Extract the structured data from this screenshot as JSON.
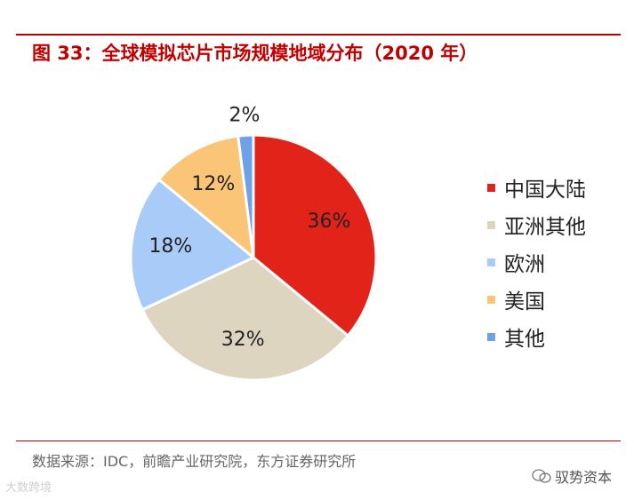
{
  "title": "图 33：全球模拟芯片市场规模地域分布（2020 年）",
  "source": "数据来源：IDC，前瞻产业研究院，东方证券研究所",
  "watermark_left": "大数跨境",
  "watermark_right": "驭势资本",
  "colors": {
    "accent": "#c00000"
  },
  "chart_data": {
    "type": "pie",
    "labels": [
      "中国大陆",
      "亚洲其他",
      "欧洲",
      "美国",
      "其他"
    ],
    "values": [
      36,
      32,
      18,
      12,
      2
    ],
    "data_labels": [
      "36%",
      "32%",
      "18%",
      "12%",
      "2%"
    ],
    "colors": [
      "#e2231a",
      "#ddd5c0",
      "#a8cbf7",
      "#fbc577",
      "#6da2ea"
    ],
    "legend_position": "right",
    "start": "top, clockwise"
  }
}
